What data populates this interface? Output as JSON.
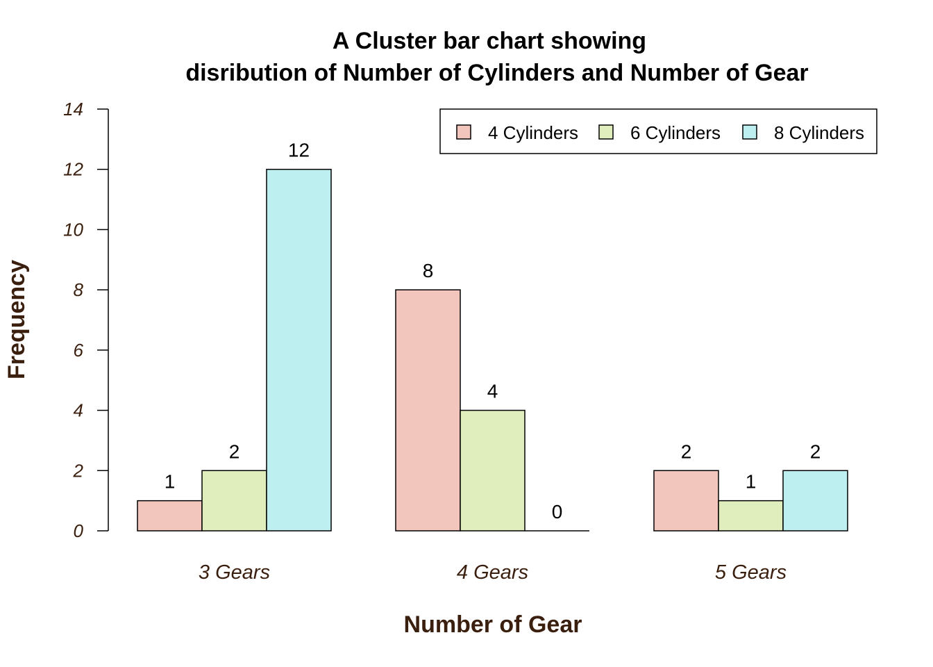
{
  "chart_data": {
    "type": "bar",
    "title": [
      "A Cluster bar chart showing",
      "disribution of Number of Cylinders and Number of Gear"
    ],
    "xlabel": "Number of Gear",
    "ylabel": "Frequency",
    "categories": [
      "3 Gears",
      "4 Gears",
      "5 Gears"
    ],
    "series": [
      {
        "name": "4 Cylinders",
        "color": "#f2c6bd",
        "values": [
          1,
          8,
          2
        ]
      },
      {
        "name": "6 Cylinders",
        "color": "#e0eebd",
        "values": [
          2,
          4,
          1
        ]
      },
      {
        "name": "8 Cylinders",
        "color": "#bdeff0",
        "values": [
          12,
          0,
          2
        ]
      }
    ],
    "ylim": [
      0,
      14
    ],
    "yticks": [
      0,
      2,
      4,
      6,
      8,
      10,
      12,
      14
    ],
    "grid": false,
    "legend": "top-right",
    "data_labels": true
  }
}
